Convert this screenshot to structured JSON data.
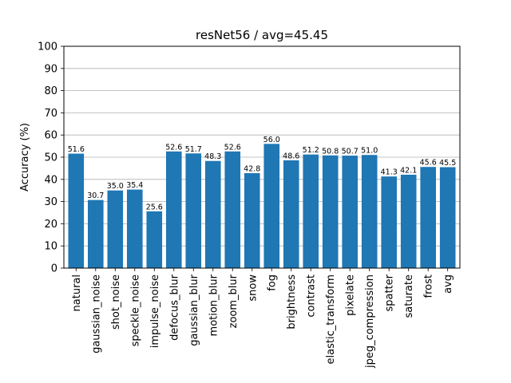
{
  "chart_data": {
    "type": "bar",
    "title": "resNet56 / avg=45.45",
    "xlabel": "",
    "ylabel": "Accuracy (%)",
    "ylim": [
      0,
      100
    ],
    "yticks": [
      "0",
      "10",
      "20",
      "30",
      "40",
      "50",
      "60",
      "70",
      "80",
      "90",
      "100"
    ],
    "grid": "horizontal",
    "bar_color": "#1f77b4",
    "categories": [
      "natural",
      "gaussian_noise",
      "shot_noise",
      "speckle_noise",
      "impulse_noise",
      "defocus_blur",
      "gaussian_blur",
      "motion_blur",
      "zoom_blur",
      "snow",
      "fog",
      "brightness",
      "contrast",
      "elastic_transform",
      "pixelate",
      "jpeg_compression",
      "spatter",
      "saturate",
      "frost",
      "avg"
    ],
    "values": [
      51.6,
      30.7,
      35.0,
      35.4,
      25.6,
      52.6,
      51.7,
      48.3,
      52.6,
      42.8,
      56.0,
      48.6,
      51.2,
      50.8,
      50.7,
      51.0,
      41.3,
      42.1,
      45.6,
      45.5
    ],
    "value_labels": [
      "51.6",
      "30.7",
      "35.0",
      "35.4",
      "25.6",
      "52.6",
      "51.7",
      "48.3",
      "52.6",
      "42.8",
      "56.0",
      "48.6",
      "51.2",
      "50.8",
      "50.7",
      "51.0",
      "41.3",
      "42.1",
      "45.6",
      "45.5"
    ]
  }
}
